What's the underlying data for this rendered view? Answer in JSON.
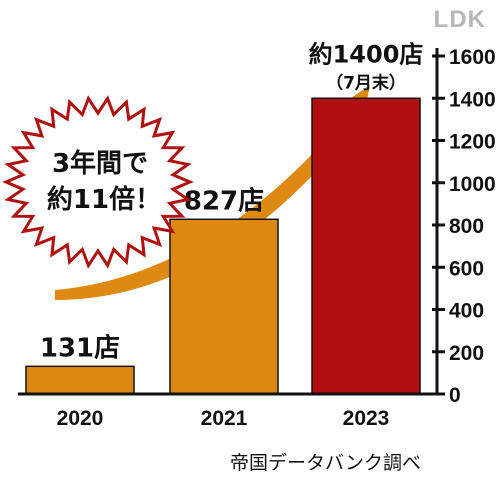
{
  "brand": {
    "logo": "LDK"
  },
  "source": "帝国データバンク調べ",
  "callout": {
    "line1": "3年間で",
    "line2": "約11倍！"
  },
  "colors": {
    "orange": "#de8a12",
    "red": "#b01010",
    "axis": "#111111",
    "burst_outline": "#b01010"
  },
  "chart_data": {
    "type": "bar",
    "categories": [
      "2020",
      "2021",
      "2023"
    ],
    "values": [
      131,
      827,
      1400
    ],
    "value_labels": [
      "131店",
      "827店",
      "約1400店"
    ],
    "value_notes": [
      "",
      "",
      "（7月末）"
    ],
    "bar_colors": [
      "orange",
      "orange",
      "red"
    ],
    "ylim": [
      0,
      1600
    ],
    "yticks": [
      0,
      200,
      400,
      600,
      800,
      1000,
      1200,
      1400,
      1600
    ],
    "yaxis_side": "right",
    "title": "",
    "xlabel": "",
    "ylabel": ""
  }
}
